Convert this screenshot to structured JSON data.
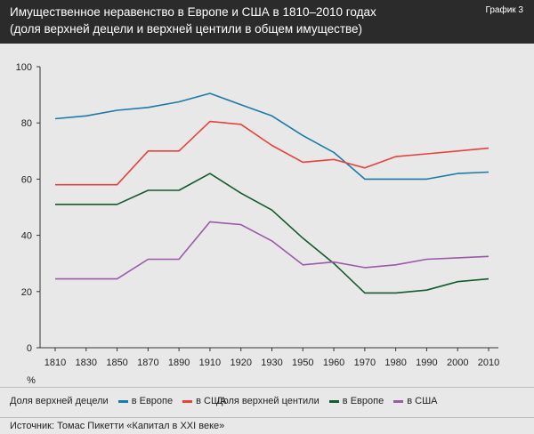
{
  "header": {
    "title_line1": "Имущественное неравенство в Европе и США в 1810–2010 годах",
    "title_line2": "(доля верхней децели и верхней центили в общем имуществе)",
    "figure_label": "График 3"
  },
  "colors": {
    "europe_top10": "#1c7aa6",
    "usa_top10": "#e8403a",
    "europe_top1": "#135a2c",
    "usa_top1": "#9a5aa6"
  },
  "chart_data": {
    "type": "line",
    "x": [
      "1810",
      "1830",
      "1850",
      "1870",
      "1890",
      "1910",
      "1920",
      "1930",
      "1950",
      "1960",
      "1970",
      "1980",
      "1990",
      "2000",
      "2010"
    ],
    "ylim": [
      0,
      100
    ],
    "yticks": [
      0,
      20,
      40,
      60,
      80,
      100
    ],
    "ylabel": "%",
    "grid": false,
    "series": [
      {
        "name": "в Европе",
        "group": "Доля верхней децели",
        "color": "#1c7aa6",
        "values": [
          81.5,
          82.5,
          84.5,
          85.5,
          87.5,
          90.5,
          86.5,
          82.5,
          75.5,
          69.5,
          60,
          60,
          60,
          62,
          62.5
        ]
      },
      {
        "name": "в США",
        "group": "Доля верхней децели",
        "color": "#e8403a",
        "values": [
          58,
          58,
          58,
          70,
          70,
          80.5,
          79.5,
          72,
          66,
          67,
          64,
          68,
          69,
          70,
          71
        ]
      },
      {
        "name": "в Европе",
        "group": "Доля верхней центили",
        "color": "#135a2c",
        "values": [
          51,
          51,
          51,
          56,
          56,
          62,
          55,
          49,
          39,
          30,
          19.5,
          19.5,
          20.5,
          23.5,
          24.5
        ]
      },
      {
        "name": "в США",
        "group": "Доля верхней центили",
        "color": "#9a5aa6",
        "values": [
          24.5,
          24.5,
          24.5,
          31.5,
          31.5,
          44.8,
          43.8,
          38,
          29.5,
          30.5,
          28.5,
          29.5,
          31.5,
          32,
          32.5
        ]
      }
    ]
  },
  "legend": {
    "group1_label": "Доля верхней децели",
    "group1_europe": "в Европе",
    "group1_usa": "в США",
    "group2_label": "Доля верхней центили",
    "group2_europe": "в Европе",
    "group2_usa": "в США"
  },
  "source": "Источник: Томас Пикетти «Капитал в XXI веке»"
}
